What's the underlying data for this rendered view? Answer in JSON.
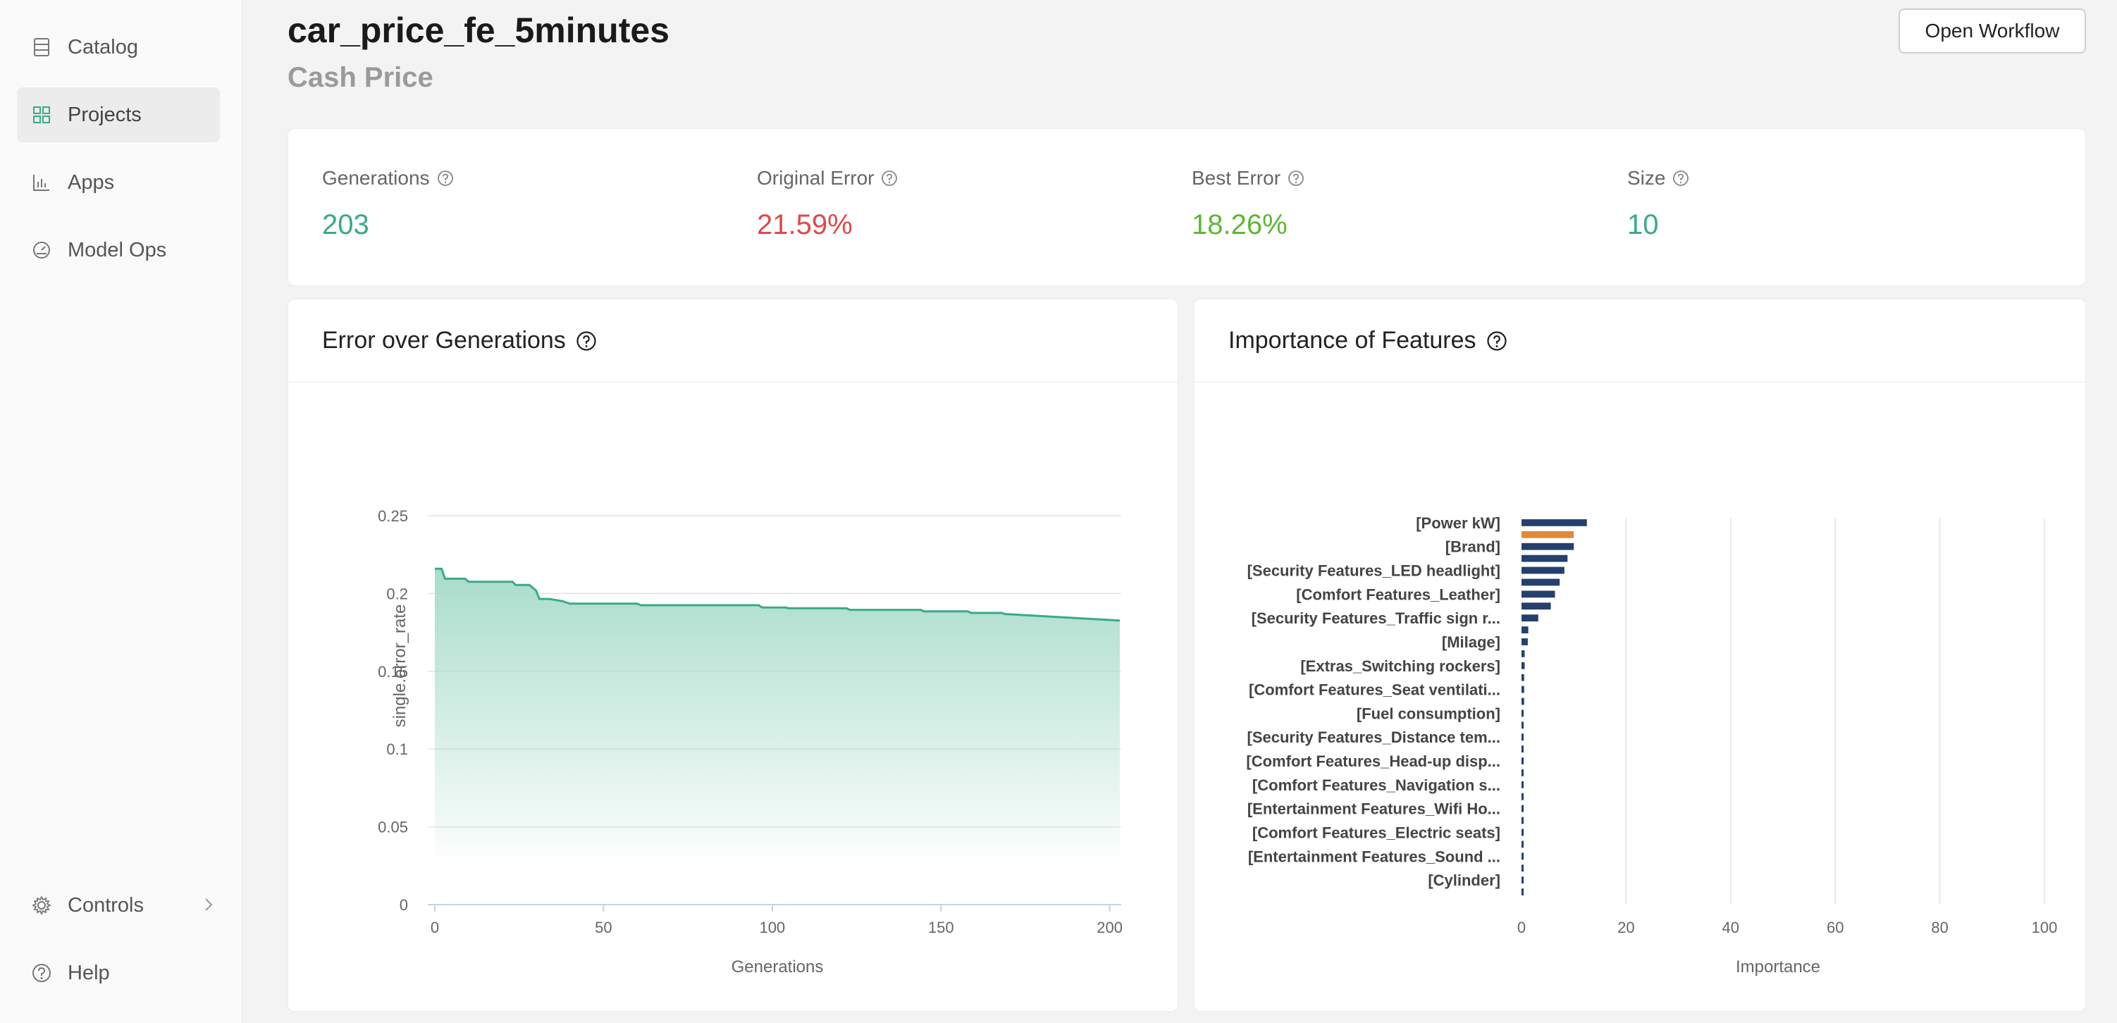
{
  "sidebar": {
    "items": [
      {
        "label": "Catalog",
        "icon": "catalog-icon"
      },
      {
        "label": "Projects",
        "icon": "projects-grid-icon",
        "active": true
      },
      {
        "label": "Apps",
        "icon": "bar-chart-icon"
      },
      {
        "label": "Model Ops",
        "icon": "gauge-icon"
      }
    ],
    "controls_label": "Controls",
    "help_label": "Help"
  },
  "header": {
    "title": "car_price_fe_5minutes",
    "subtitle": "Cash Price",
    "open_workflow_label": "Open Workflow"
  },
  "stats": [
    {
      "label": "Generations",
      "value": "203",
      "color": "#3aaa86"
    },
    {
      "label": "Original Error",
      "value": "21.59%",
      "color": "#e04848"
    },
    {
      "label": "Best Error",
      "value": "18.26%",
      "color": "#5cb832"
    },
    {
      "label": "Size",
      "value": "10",
      "color": "#3aaa86"
    }
  ],
  "colors": {
    "accent": "#3aaa86",
    "area_fill": "#a8dccb",
    "bar_primary": "#24406e",
    "bar_highlight": "#e08a3a"
  },
  "chart_data": [
    {
      "type": "area",
      "title": "Error over Generations",
      "xlabel": "Generations",
      "ylabel": "single.error_rate",
      "xlim": [
        0,
        203
      ],
      "ylim": [
        0,
        0.25
      ],
      "xticks": [
        "0",
        "50",
        "100",
        "150",
        "200"
      ],
      "yticks": [
        "0",
        "0.05",
        "0.1",
        "0.15",
        "0.2",
        "0.25"
      ],
      "grid": true,
      "x": [
        0,
        2,
        3,
        9,
        10,
        23,
        24,
        28,
        30,
        31,
        34,
        38,
        40,
        60,
        61,
        96,
        97,
        104,
        105,
        122,
        123,
        144,
        145,
        158,
        159,
        168,
        169,
        203
      ],
      "y": [
        0.2159,
        0.2159,
        0.2095,
        0.2095,
        0.2075,
        0.2075,
        0.2055,
        0.2055,
        0.202,
        0.1965,
        0.1965,
        0.195,
        0.1935,
        0.1935,
        0.1925,
        0.1925,
        0.191,
        0.191,
        0.1905,
        0.1905,
        0.1895,
        0.1895,
        0.1885,
        0.1885,
        0.1875,
        0.1875,
        0.1868,
        0.1826
      ]
    },
    {
      "type": "bar",
      "orientation": "horizontal",
      "title": "Importance of Features",
      "xlabel": "Importance",
      "xlim": [
        0,
        100
      ],
      "xticks": [
        "0",
        "20",
        "40",
        "60",
        "80",
        "100"
      ],
      "grid": true,
      "labeled_categories": [
        "[Power kW]",
        "[Brand]",
        "[Security Features_LED headlight]",
        "[Comfort Features_Leather]",
        "[Security Features_Traffic sign r...",
        "[Milage]",
        "[Extras_Switching rockers]",
        "[Comfort Features_Seat ventilati...",
        "[Fuel consumption]",
        "[Security Features_Distance tem...",
        "[Comfort Features_Head-up disp...",
        "[Comfort Features_Navigation s...",
        "[Entertainment Features_Wifi Ho...",
        "[Comfort Features_Electric seats]",
        "[Entertainment Features_Sound ...",
        "[Cylinder]"
      ],
      "values": [
        12.5,
        10.0,
        10.0,
        8.8,
        8.2,
        7.3,
        6.4,
        5.6,
        3.2,
        1.3,
        1.2,
        0.6,
        0.6,
        0.5,
        0.5,
        0.5,
        0.4,
        0.4,
        0.4,
        0.4,
        0.4,
        0.4,
        0.4,
        0.4,
        0.4,
        0.4,
        0.4,
        0.4,
        0.4,
        0.4,
        0.4,
        0.4
      ],
      "highlight_index": 1
    }
  ]
}
